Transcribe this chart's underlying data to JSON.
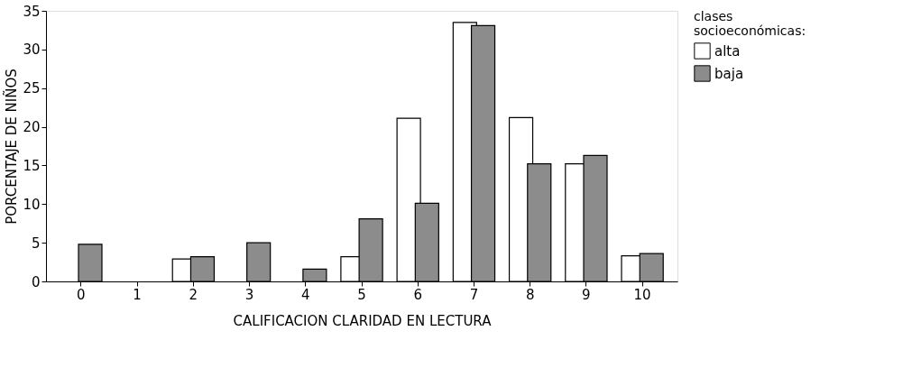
{
  "chart_data": {
    "type": "bar",
    "xlabel": "CALIFICACION CLARIDAD EN LECTURA",
    "ylabel": "PORCENTAJE DE NIÑOS",
    "legend_title": "clases socioeconómicas:",
    "categories": [
      "0",
      "1",
      "2",
      "3",
      "4",
      "5",
      "6",
      "7",
      "8",
      "9",
      "10"
    ],
    "series": [
      {
        "name": "alta",
        "color": "#ffffff",
        "values": [
          null,
          null,
          2.9,
          null,
          null,
          3.2,
          21.1,
          33.5,
          21.2,
          15.2,
          3.3
        ]
      },
      {
        "name": "baja",
        "color": "#8c8c8c",
        "values": [
          4.8,
          null,
          3.2,
          5.0,
          1.6,
          8.1,
          10.1,
          33.1,
          15.2,
          16.3,
          3.6
        ]
      }
    ],
    "ylim": [
      0,
      35
    ],
    "yticks": [
      0,
      5,
      10,
      15,
      20,
      25,
      30,
      35
    ],
    "grid": false,
    "legend": "right"
  }
}
